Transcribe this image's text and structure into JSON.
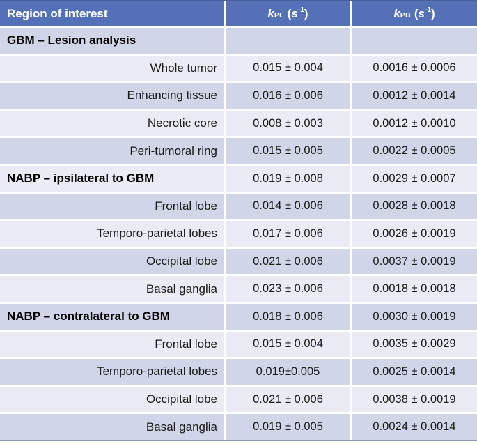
{
  "header": {
    "region": "Region of interest",
    "kpl": {
      "symbol": "k",
      "sub": "PL",
      "open": "(",
      "s": "s",
      "sup": "-1",
      "close": " )"
    },
    "kpb": {
      "symbol": "k",
      "sub": "PB",
      "open": "(",
      "s": "s",
      "sup": "-1",
      "close": " )"
    }
  },
  "colors": {
    "header_bg": "#5471B8",
    "band_dark": "#D1D5E8",
    "band_light": "#EAEBF4",
    "table_top_border": "#47629E",
    "table_bottom_border": "#8A9BCB",
    "header_text": "#FFFFFF",
    "body_text": "#1A1A1A",
    "separator": "#FFFFFF"
  },
  "chart_data": {
    "type": "table",
    "columns": [
      "Region of interest",
      "kPL (s-1)",
      "kPB (s-1)"
    ],
    "rows": [
      {
        "label": "GBM – Lesion analysis",
        "kpl": "",
        "kpb": "",
        "group": true,
        "band": "dark"
      },
      {
        "label": "Whole tumor",
        "kpl": "0.015 ± 0.004",
        "kpb": "0.0016 ± 0.0006",
        "group": false,
        "band": "light"
      },
      {
        "label": "Enhancing tissue",
        "kpl": "0.016 ± 0.006",
        "kpb": "0.0012 ± 0.0014",
        "group": false,
        "band": "dark"
      },
      {
        "label": "Necrotic core",
        "kpl": "0.008 ± 0.003",
        "kpb": "0.0012 ± 0.0010",
        "group": false,
        "band": "light"
      },
      {
        "label": "Peri-tumoral ring",
        "kpl": "0.015 ± 0.005",
        "kpb": "0.0022 ± 0.0005",
        "group": false,
        "band": "dark"
      },
      {
        "label": "NABP – ipsilateral to GBM",
        "kpl": "0.019 ± 0.008",
        "kpb": "0.0029 ± 0.0007",
        "group": true,
        "band": "light"
      },
      {
        "label": "Frontal lobe",
        "kpl": "0.014 ± 0.006",
        "kpb": "0.0028 ± 0.0018",
        "group": false,
        "band": "dark"
      },
      {
        "label": "Temporo-parietal lobes",
        "kpl": "0.017 ± 0.006",
        "kpb": "0.0026 ± 0.0019",
        "group": false,
        "band": "light"
      },
      {
        "label": "Occipital lobe",
        "kpl": "0.021 ± 0.006",
        "kpb": "0.0037 ± 0.0019",
        "group": false,
        "band": "dark"
      },
      {
        "label": "Basal ganglia",
        "kpl": "0.023 ± 0.006",
        "kpb": "0.0018 ± 0.0018",
        "group": false,
        "band": "light"
      },
      {
        "label": "NABP – contralateral to GBM",
        "kpl": "0.018 ± 0.006",
        "kpb": "0.0030 ± 0.0019",
        "group": true,
        "band": "dark"
      },
      {
        "label": "Frontal lobe",
        "kpl": "0.015 ± 0.004",
        "kpb": "0.0035 ± 0.0029",
        "group": false,
        "band": "light"
      },
      {
        "label": "Temporo-parietal lobes",
        "kpl": "0.019±0.005",
        "kpb": "0.0025 ± 0.0014",
        "group": false,
        "band": "dark"
      },
      {
        "label": "Occipital lobe",
        "kpl": "0.021 ± 0.006",
        "kpb": "0.0038 ± 0.0019",
        "group": false,
        "band": "light"
      },
      {
        "label": "Basal ganglia",
        "kpl": "0.019 ± 0.005",
        "kpb": "0.0024 ± 0.0014",
        "group": false,
        "band": "dark"
      }
    ]
  }
}
